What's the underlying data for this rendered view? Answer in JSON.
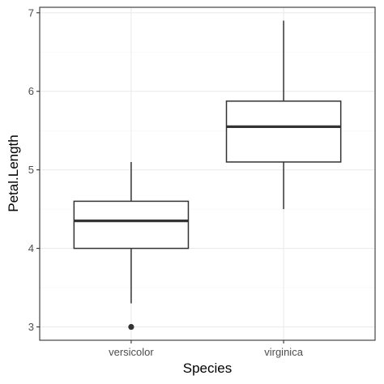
{
  "chart_data": {
    "type": "boxplot",
    "xlabel": "Species",
    "ylabel": "Petal.Length",
    "categories": [
      "versicolor",
      "virginica"
    ],
    "ylim": [
      2.83,
      7.07
    ],
    "yticks": [
      3,
      4,
      5,
      6,
      7
    ],
    "grid": true,
    "legend": "none",
    "boxes": [
      {
        "category": "versicolor",
        "whisker_low": 3.3,
        "q1": 4.0,
        "median": 4.35,
        "q3": 4.6,
        "whisker_high": 5.1,
        "outliers": [
          3.0
        ]
      },
      {
        "category": "virginica",
        "whisker_low": 4.5,
        "q1": 5.1,
        "median": 5.55,
        "q3": 5.875,
        "whisker_high": 6.9,
        "outliers": []
      }
    ],
    "colors": {
      "panel_border": "#333333",
      "grid_major": "#ebebeb",
      "grid_minor": "#f5f5f5",
      "box_line": "#333333",
      "box_fill": "#ffffff"
    }
  }
}
